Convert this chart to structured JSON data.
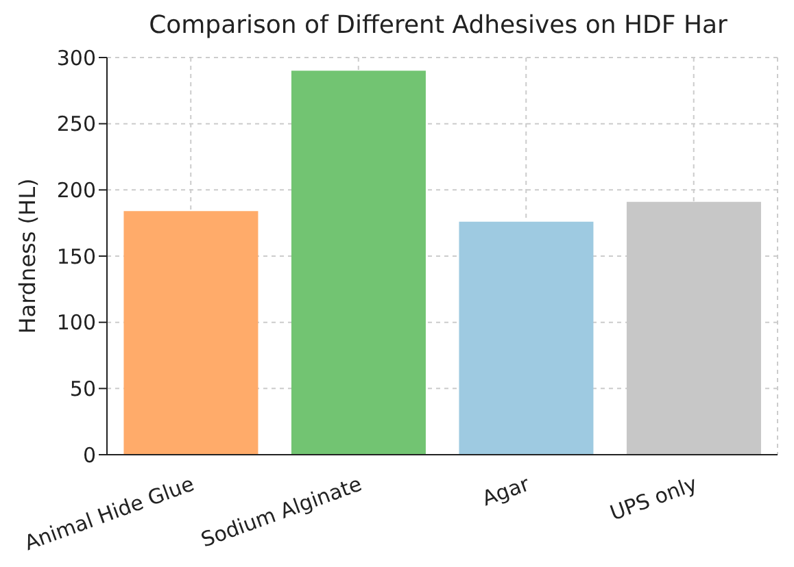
{
  "chart_data": {
    "type": "bar",
    "title": "Comparison of Different Adhesives on HDF Har",
    "ylabel": "Hardness (HL)",
    "categories": [
      "Animal Hide Glue",
      "Sodium Alginate",
      "Agar",
      "UPS only"
    ],
    "values": [
      184,
      290,
      176,
      191
    ],
    "colors": [
      "#ffab6a",
      "#72c472",
      "#9ecae1",
      "#c7c7c7"
    ],
    "ylim": [
      0,
      300
    ],
    "yticks": [
      0,
      50,
      100,
      150,
      200,
      250,
      300
    ],
    "grid": true
  }
}
